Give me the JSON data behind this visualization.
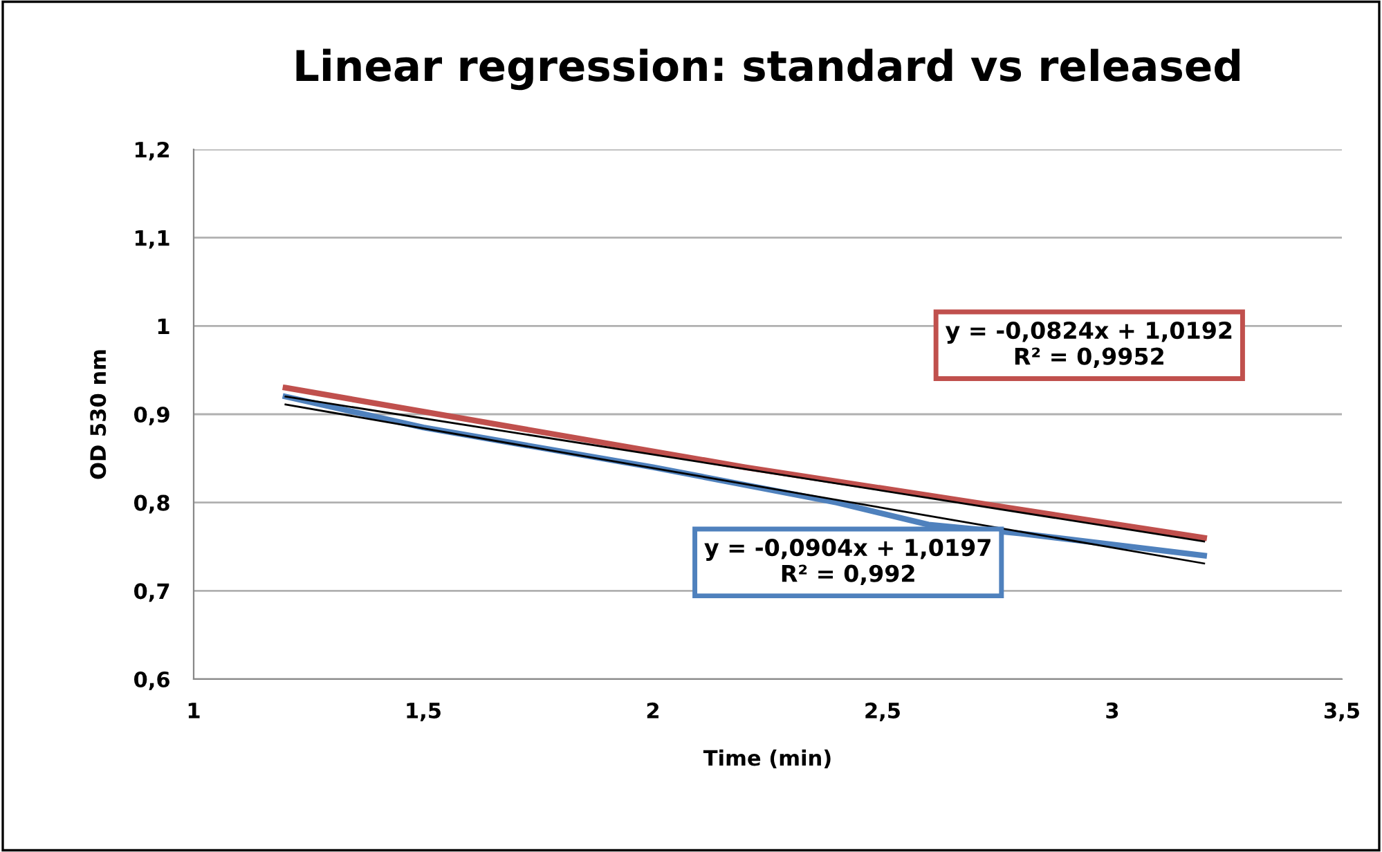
{
  "chart_data": {
    "type": "line",
    "title": "Linear regression: standard vs released",
    "xlabel": "Time (min)",
    "ylabel": "OD 530 nm",
    "xlim": [
      1,
      3.5
    ],
    "xticks": [
      {
        "value": 1,
        "label": "1"
      },
      {
        "value": 1.5,
        "label": "1,5"
      },
      {
        "value": 2,
        "label": "2"
      },
      {
        "value": 2.5,
        "label": "2,5"
      },
      {
        "value": 3,
        "label": "3"
      },
      {
        "value": 3.5,
        "label": "3,5"
      }
    ],
    "ylim": [
      0.6,
      1.2
    ],
    "yticks": [
      {
        "value": 0.6,
        "label": "0,6"
      },
      {
        "value": 0.7,
        "label": "0,7"
      },
      {
        "value": 0.8,
        "label": "0,8"
      },
      {
        "value": 0.9,
        "label": "0,9"
      },
      {
        "value": 1,
        "label": "1"
      },
      {
        "value": 1.1,
        "label": "1,1"
      },
      {
        "value": 1.2,
        "label": "1,2"
      }
    ],
    "grid": "y",
    "legend": false,
    "marker": "none",
    "series": [
      {
        "color": "#c0504d",
        "x": [
          1.2,
          2.2,
          3.2
        ],
        "values": [
          0.93,
          0.84,
          0.76
        ]
      },
      {
        "color": "#4f81bd",
        "x": [
          1.2,
          1.5,
          2.0,
          2.4,
          2.6,
          2.8,
          3.2
        ],
        "values": [
          0.92,
          0.885,
          0.84,
          0.8,
          0.775,
          0.765,
          0.74
        ]
      },
      {
        "color": "#000000",
        "x": [
          1.2,
          3.2
        ],
        "values": [
          0.92,
          0.756
        ]
      },
      {
        "color": "#000000",
        "x": [
          1.2,
          3.2
        ],
        "values": [
          0.911,
          0.731
        ]
      }
    ],
    "annotations": [
      "y = -0,0824x + 1,0192\nR² = 0,9952",
      "y = -0,0904x + 1,0197\nR² = 0,992"
    ]
  }
}
